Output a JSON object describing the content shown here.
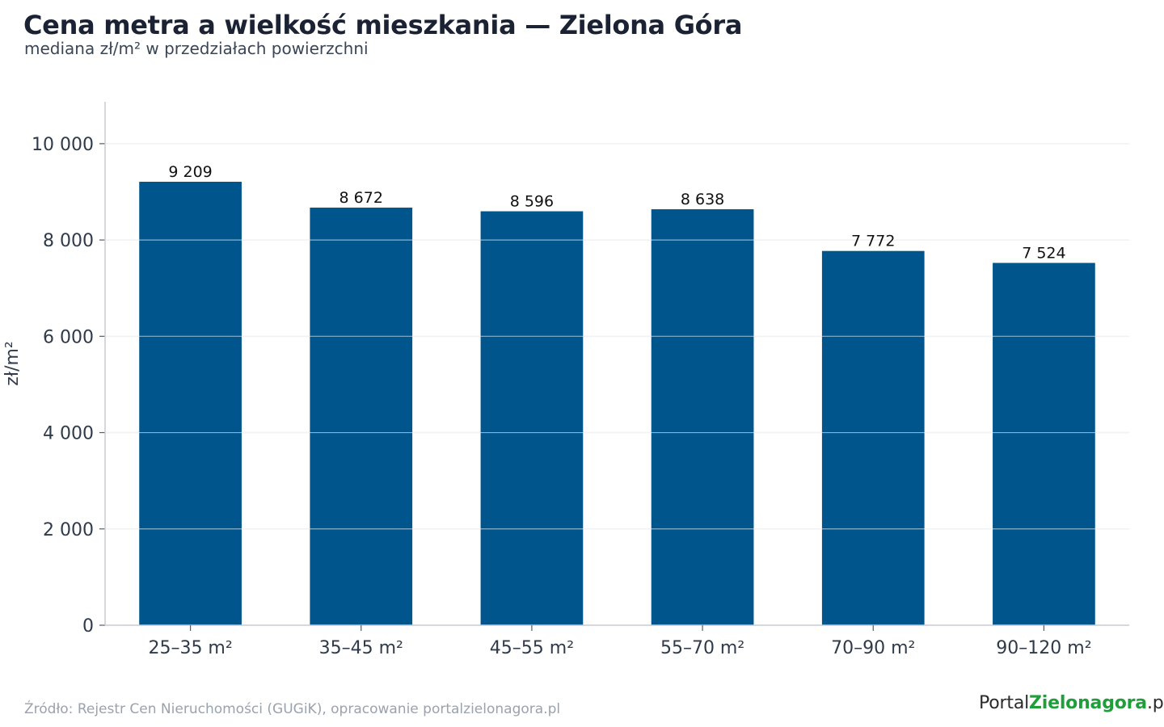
{
  "title": "Cena metra a wielkość mieszkania — Zielona Góra",
  "subtitle": "mediana zł/m² w przedziałach powierzchni",
  "source": "Źródło: Rejestr Cen Nieruchomości (GUGiK), opracowanie portalzielonagora.pl",
  "logo": {
    "part1": "Portal",
    "part2": "Zielonagora",
    "part3": ".pl"
  },
  "colors": {
    "bar": "#00558c",
    "grid": "#e3e6ea",
    "axis": "#c8ccd2",
    "text": "#2f3a4a",
    "logo_green": "#1f9e3a"
  },
  "chart_data": {
    "type": "bar",
    "categories": [
      "25–35 m²",
      "35–45 m²",
      "45–55 m²",
      "55–70 m²",
      "70–90 m²",
      "90–120 m²"
    ],
    "values": [
      9209,
      8672,
      8596,
      8638,
      7772,
      7524
    ],
    "value_labels": [
      "9 209",
      "8 672",
      "8 596",
      "8 638",
      "7 772",
      "7 524"
    ],
    "ylabel": "zł/m²",
    "yticks": [
      0,
      2000,
      4000,
      6000,
      8000,
      10000
    ],
    "ytick_labels": [
      "0",
      "2 000",
      "4 000",
      "6 000",
      "8 000",
      "10 000"
    ],
    "ylim": [
      0,
      10870
    ],
    "grid": true,
    "legend": false
  }
}
